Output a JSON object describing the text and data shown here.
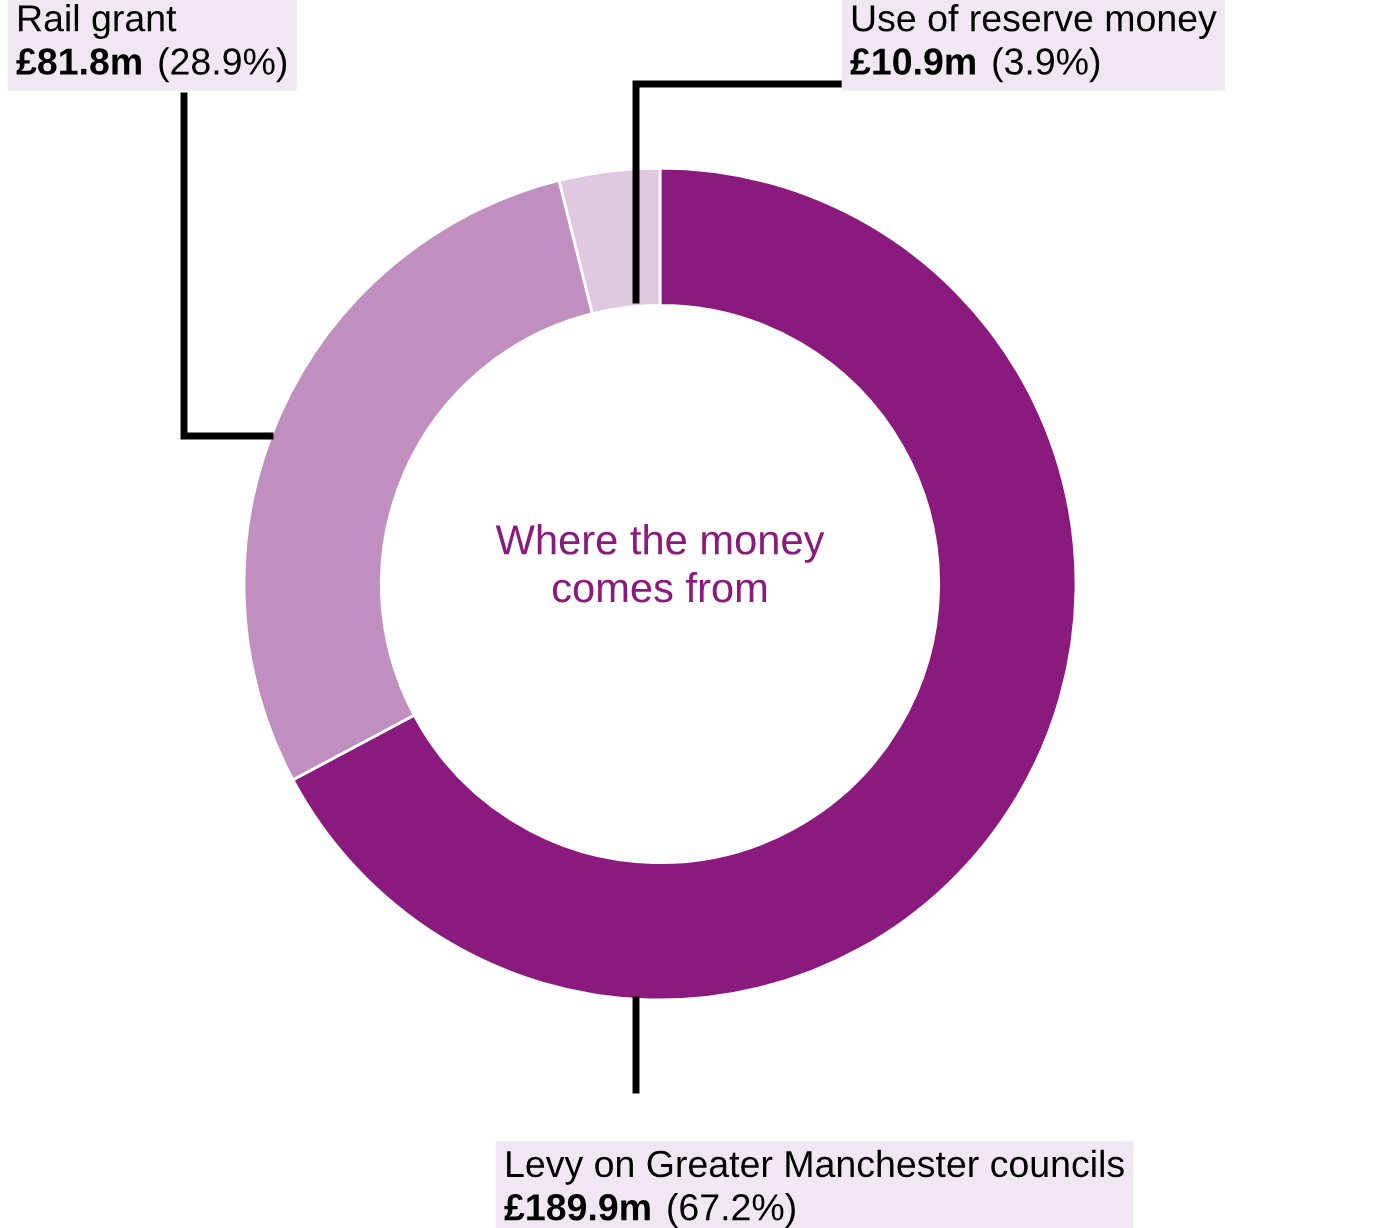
{
  "chart_data": {
    "type": "donut",
    "title": "Where the money\ncomes from",
    "categories": [
      "Levy on Greater Manchester councils",
      "Rail grant",
      "Use of reserve money"
    ],
    "values": [
      67.2,
      28.9,
      3.9
    ],
    "colors": [
      "#8b1a7e",
      "#c08fc0",
      "#e0c8e0"
    ],
    "value_labels": [
      "£189.9m (67.2%)",
      "£81.8m (28.9%)",
      "£10.9m (3.9%)"
    ]
  }
}
